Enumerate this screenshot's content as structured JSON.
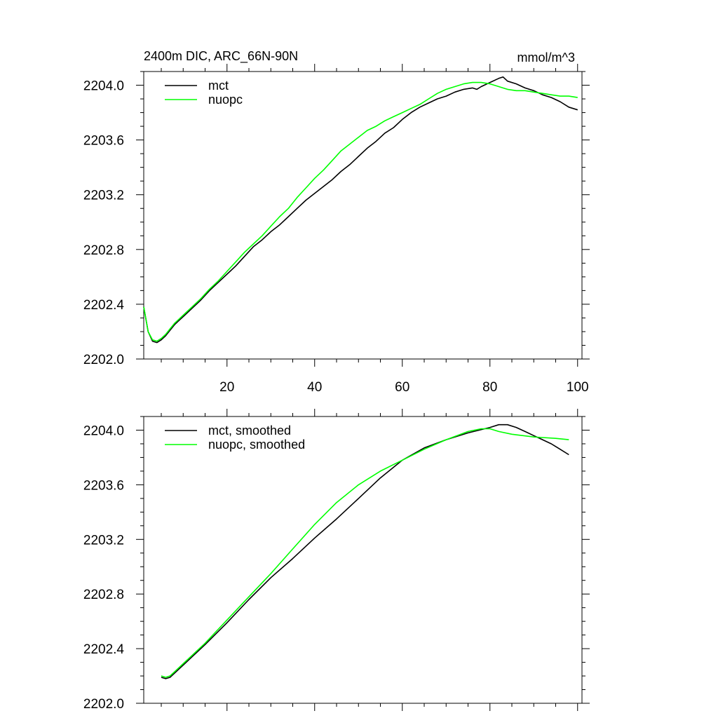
{
  "chart_data": [
    {
      "type": "line",
      "title": "2400m DIC, ARC_66N-90N",
      "units": "mmol/m^3",
      "xlabel": "",
      "ylabel": "",
      "xlim": [
        1,
        101
      ],
      "ylim": [
        2202.0,
        2204.1
      ],
      "xticks": [
        20,
        40,
        60,
        80,
        100
      ],
      "xtick_labels": [
        "20",
        "40",
        "60",
        "80",
        "100"
      ],
      "yticks": [
        2202.0,
        2202.4,
        2202.8,
        2203.2,
        2203.6,
        2204.0
      ],
      "ytick_labels": [
        "2202.0",
        "2202.4",
        "2202.8",
        "2203.2",
        "2203.6",
        "2204.0"
      ],
      "legend_position": "top-left",
      "series": [
        {
          "name": "mct",
          "color": "#000000",
          "x": [
            1,
            2,
            3,
            4,
            5,
            6,
            7,
            8,
            9,
            10,
            12,
            14,
            16,
            18,
            20,
            22,
            24,
            26,
            28,
            30,
            32,
            34,
            36,
            38,
            40,
            42,
            44,
            46,
            48,
            50,
            52,
            54,
            56,
            58,
            60,
            62,
            64,
            66,
            68,
            70,
            72,
            74,
            76,
            77,
            78,
            80,
            82,
            83,
            84,
            86,
            88,
            90,
            92,
            94,
            96,
            98,
            100
          ],
          "values": [
            2202.38,
            2202.2,
            2202.13,
            2202.12,
            2202.14,
            2202.17,
            2202.21,
            2202.25,
            2202.28,
            2202.31,
            2202.37,
            2202.43,
            2202.5,
            2202.56,
            2202.62,
            2202.68,
            2202.75,
            2202.82,
            2202.87,
            2202.93,
            2202.98,
            2203.04,
            2203.1,
            2203.16,
            2203.21,
            2203.26,
            2203.31,
            2203.37,
            2203.42,
            2203.48,
            2203.54,
            2203.59,
            2203.65,
            2203.69,
            2203.75,
            2203.8,
            2203.84,
            2203.87,
            2203.9,
            2203.92,
            2203.95,
            2203.97,
            2203.98,
            2203.97,
            2203.99,
            2204.02,
            2204.05,
            2204.06,
            2204.03,
            2204.01,
            2203.98,
            2203.96,
            2203.93,
            2203.91,
            2203.88,
            2203.84,
            2203.82
          ]
        },
        {
          "name": "nuopc",
          "color": "#00ff00",
          "x": [
            1,
            2,
            3,
            4,
            5,
            6,
            7,
            8,
            9,
            10,
            12,
            14,
            16,
            18,
            20,
            22,
            24,
            26,
            28,
            30,
            32,
            34,
            36,
            38,
            40,
            42,
            44,
            46,
            48,
            50,
            52,
            54,
            56,
            58,
            60,
            62,
            64,
            66,
            68,
            70,
            72,
            74,
            76,
            78,
            80,
            82,
            84,
            86,
            88,
            90,
            92,
            94,
            96,
            98,
            100
          ],
          "values": [
            2202.38,
            2202.2,
            2202.14,
            2202.13,
            2202.15,
            2202.18,
            2202.22,
            2202.26,
            2202.29,
            2202.32,
            2202.38,
            2202.44,
            2202.51,
            2202.57,
            2202.64,
            2202.71,
            2202.78,
            2202.84,
            2202.9,
            2202.97,
            2203.04,
            2203.1,
            2203.18,
            2203.25,
            2203.32,
            2203.38,
            2203.45,
            2203.52,
            2203.57,
            2203.62,
            2203.67,
            2203.7,
            2203.74,
            2203.77,
            2203.8,
            2203.83,
            2203.86,
            2203.9,
            2203.94,
            2203.97,
            2203.99,
            2204.01,
            2204.02,
            2204.02,
            2204.01,
            2203.99,
            2203.97,
            2203.96,
            2203.96,
            2203.95,
            2203.94,
            2203.93,
            2203.92,
            2203.92,
            2203.91
          ]
        }
      ]
    },
    {
      "type": "line",
      "title": "",
      "xlabel": "",
      "ylabel": "",
      "xlim": [
        1,
        101
      ],
      "ylim": [
        2202.0,
        2204.1
      ],
      "xticks": [
        20,
        40,
        60,
        80,
        100
      ],
      "xtick_labels": [],
      "yticks": [
        2202.0,
        2202.4,
        2202.8,
        2203.2,
        2203.6,
        2204.0
      ],
      "ytick_labels": [
        "2202.0",
        "2202.4",
        "2202.8",
        "2203.2",
        "2203.6",
        "2204.0"
      ],
      "legend_position": "top-left",
      "series": [
        {
          "name": "mct, smoothed",
          "color": "#000000",
          "x": [
            5,
            6,
            7,
            8,
            10,
            12,
            15,
            20,
            25,
            30,
            35,
            40,
            45,
            50,
            55,
            60,
            65,
            70,
            75,
            80,
            82,
            84,
            86,
            88,
            90,
            92,
            94,
            96,
            98
          ],
          "values": [
            2202.19,
            2202.18,
            2202.19,
            2202.22,
            2202.28,
            2202.34,
            2202.43,
            2202.59,
            2202.76,
            2202.92,
            2203.06,
            2203.21,
            2203.35,
            2203.5,
            2203.65,
            2203.78,
            2203.87,
            2203.93,
            2203.98,
            2204.02,
            2204.04,
            2204.04,
            2204.02,
            2203.99,
            2203.96,
            2203.93,
            2203.9,
            2203.86,
            2203.82
          ]
        },
        {
          "name": "nuopc, smoothed",
          "color": "#00ff00",
          "x": [
            5,
            6,
            7,
            8,
            10,
            12,
            15,
            20,
            25,
            30,
            35,
            40,
            45,
            50,
            55,
            60,
            65,
            70,
            75,
            78,
            80,
            82,
            85,
            90,
            95,
            98
          ],
          "values": [
            2202.2,
            2202.19,
            2202.2,
            2202.23,
            2202.29,
            2202.35,
            2202.44,
            2202.61,
            2202.78,
            2202.95,
            2203.13,
            2203.31,
            2203.47,
            2203.6,
            2203.7,
            2203.78,
            2203.86,
            2203.93,
            2203.99,
            2204.01,
            2204.01,
            2203.99,
            2203.97,
            2203.95,
            2203.94,
            2203.93
          ]
        }
      ]
    }
  ]
}
